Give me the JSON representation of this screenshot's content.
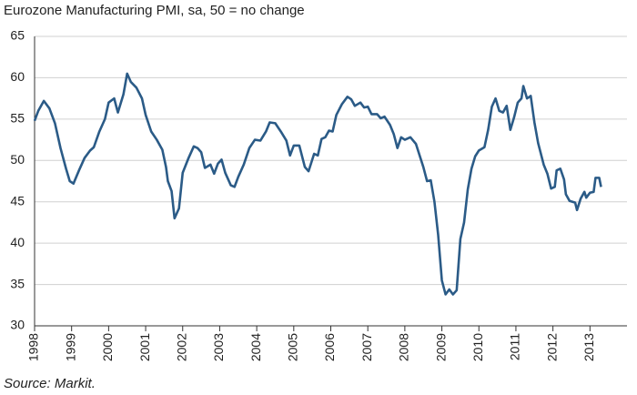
{
  "chart_data": {
    "type": "line",
    "title": "Eurozone Manufacturing PMI, sa, 50 = no change",
    "source": "Source: Markit.",
    "color": "#2b5b87",
    "grid": true,
    "xlim": [
      1998,
      2014
    ],
    "xticks": [
      1998,
      1999,
      2000,
      2001,
      2002,
      2003,
      2004,
      2005,
      2006,
      2007,
      2008,
      2009,
      2010,
      2011,
      2012,
      2013
    ],
    "ylim": [
      30,
      65
    ],
    "yticks": [
      30,
      35,
      40,
      45,
      50,
      55,
      60,
      65
    ],
    "x": [
      1998.0,
      1998.1,
      1998.25,
      1998.4,
      1998.55,
      1998.7,
      1998.85,
      1998.95,
      1999.05,
      1999.2,
      1999.35,
      1999.5,
      1999.6,
      1999.75,
      1999.9,
      2000.0,
      2000.15,
      2000.25,
      2000.4,
      2000.5,
      2000.6,
      2000.75,
      2000.9,
      2001.0,
      2001.15,
      2001.3,
      2001.45,
      2001.55,
      2001.6,
      2001.7,
      2001.78,
      2001.9,
      2002.0,
      2002.15,
      2002.3,
      2002.4,
      2002.5,
      2002.6,
      2002.75,
      2002.85,
      2002.95,
      2003.05,
      2003.15,
      2003.3,
      2003.4,
      2003.5,
      2003.65,
      2003.8,
      2003.95,
      2004.1,
      2004.25,
      2004.35,
      2004.5,
      2004.65,
      2004.8,
      2004.9,
      2005.0,
      2005.15,
      2005.3,
      2005.4,
      2005.55,
      2005.65,
      2005.75,
      2005.85,
      2005.95,
      2006.05,
      2006.15,
      2006.3,
      2006.45,
      2006.55,
      2006.65,
      2006.8,
      2006.9,
      2007.0,
      2007.1,
      2007.25,
      2007.35,
      2007.45,
      2007.6,
      2007.7,
      2007.8,
      2007.9,
      2008.0,
      2008.15,
      2008.3,
      2008.4,
      2008.5,
      2008.6,
      2008.7,
      2008.8,
      2008.9,
      2009.0,
      2009.1,
      2009.2,
      2009.3,
      2009.4,
      2009.5,
      2009.6,
      2009.7,
      2009.8,
      2009.9,
      2010.0,
      2010.15,
      2010.25,
      2010.35,
      2010.45,
      2010.55,
      2010.65,
      2010.75,
      2010.85,
      2010.95,
      2011.05,
      2011.15,
      2011.2,
      2011.3,
      2011.4,
      2011.5,
      2011.6,
      2011.75,
      2011.85,
      2011.95,
      2012.05,
      2012.1,
      2012.2,
      2012.3,
      2012.35,
      2012.45,
      2012.6,
      2012.65,
      2012.75,
      2012.85,
      2012.9,
      2013.0,
      2013.1,
      2013.15,
      2013.25,
      2013.3
    ],
    "series": [
      {
        "values": [
          54.8,
          56,
          57.2,
          56.3,
          54.5,
          51.5,
          49,
          47.5,
          47.2,
          48.8,
          50.3,
          51.2,
          51.6,
          53.5,
          55,
          57,
          57.5,
          55.8,
          58,
          60.5,
          59.5,
          58.8,
          57.5,
          55.5,
          53.5,
          52.5,
          51.3,
          49.2,
          47.5,
          46.3,
          43,
          44.2,
          48.5,
          50.2,
          51.7,
          51.5,
          51,
          49.1,
          49.5,
          48.4,
          49.6,
          50.1,
          48.5,
          47,
          46.8,
          48,
          49.5,
          51.5,
          52.5,
          52.4,
          53.5,
          54.6,
          54.5,
          53.5,
          52.4,
          50.6,
          51.8,
          51.8,
          49.2,
          48.7,
          50.8,
          50.6,
          52.6,
          52.8,
          53.6,
          53.5,
          55.5,
          56.8,
          57.7,
          57.4,
          56.6,
          57,
          56.4,
          56.5,
          55.6,
          55.6,
          55.1,
          55.3,
          54.3,
          53.2,
          51.5,
          52.8,
          52.5,
          52.8,
          52,
          50.6,
          49.2,
          47.5,
          47.6,
          45,
          41,
          35.5,
          33.8,
          34.4,
          33.8,
          34.3,
          40.5,
          42.5,
          46.5,
          49,
          50.5,
          51.2,
          51.6,
          53.7,
          56.5,
          57.5,
          56,
          55.8,
          56.6,
          53.7,
          55.2,
          57,
          57.5,
          59,
          57.5,
          57.8,
          54.6,
          52.1,
          49.5,
          48.4,
          46.6,
          46.8,
          48.8,
          49,
          47.7,
          45.9,
          45.1,
          44.9,
          44,
          45.4,
          46.2,
          45.5,
          46.1,
          46.2,
          47.9,
          47.9,
          46.8
        ]
      }
    ]
  }
}
